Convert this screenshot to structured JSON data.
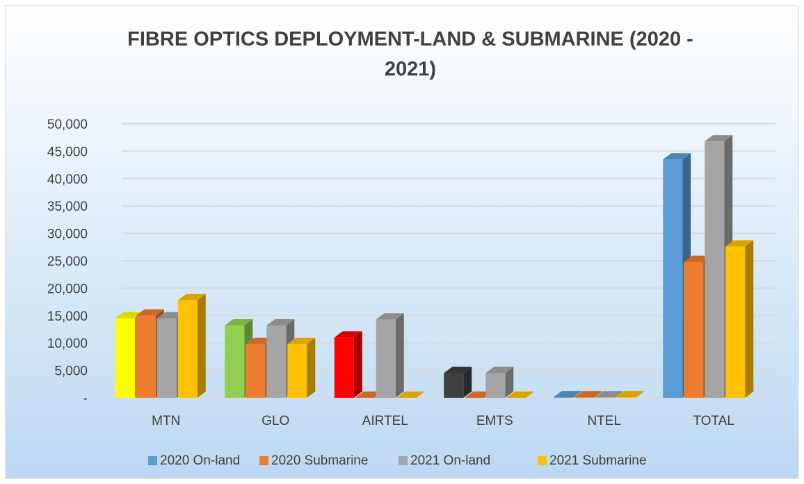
{
  "chart_data": {
    "type": "bar",
    "title": "FIBRE OPTICS DEPLOYMENT-LAND & SUBMARINE  (2020 - 2021)",
    "categories": [
      "MTN",
      "GLO",
      "AIRTEL",
      "EMTS",
      "NTEL",
      "TOTAL"
    ],
    "series": [
      {
        "name": "2020 On-land",
        "color": "#5b9bd5",
        "colors": [
          "#ffff00",
          "#92d050",
          "#ff0000",
          "#404040",
          "#5b9bd5",
          "#5b9bd5"
        ],
        "values": [
          14500,
          13200,
          11000,
          4500,
          100,
          43500
        ]
      },
      {
        "name": "2020 Submarine",
        "color": "#ed7d31",
        "values": [
          15000,
          9800,
          0,
          0,
          100,
          24800
        ]
      },
      {
        "name": "2021 On-land",
        "color": "#a5a5a5",
        "values": [
          14500,
          13200,
          14300,
          4500,
          100,
          46800
        ]
      },
      {
        "name": "2021 Submarine",
        "color": "#ffc000",
        "values": [
          17800,
          9800,
          0,
          0,
          100,
          27600
        ]
      }
    ],
    "ylim": [
      0,
      50000
    ],
    "yticks": [
      {
        "value": 0,
        "label": "-"
      },
      {
        "value": 5000,
        "label": "5,000"
      },
      {
        "value": 10000,
        "label": "10,000"
      },
      {
        "value": 15000,
        "label": "15,000"
      },
      {
        "value": 20000,
        "label": "20,000"
      },
      {
        "value": 25000,
        "label": "25,000"
      },
      {
        "value": 30000,
        "label": "30,000"
      },
      {
        "value": 35000,
        "label": "35,000"
      },
      {
        "value": 40000,
        "label": "40,000"
      },
      {
        "value": 45000,
        "label": "45,000"
      },
      {
        "value": 50000,
        "label": "50,000"
      }
    ],
    "grid": true,
    "legend": "bottom"
  }
}
